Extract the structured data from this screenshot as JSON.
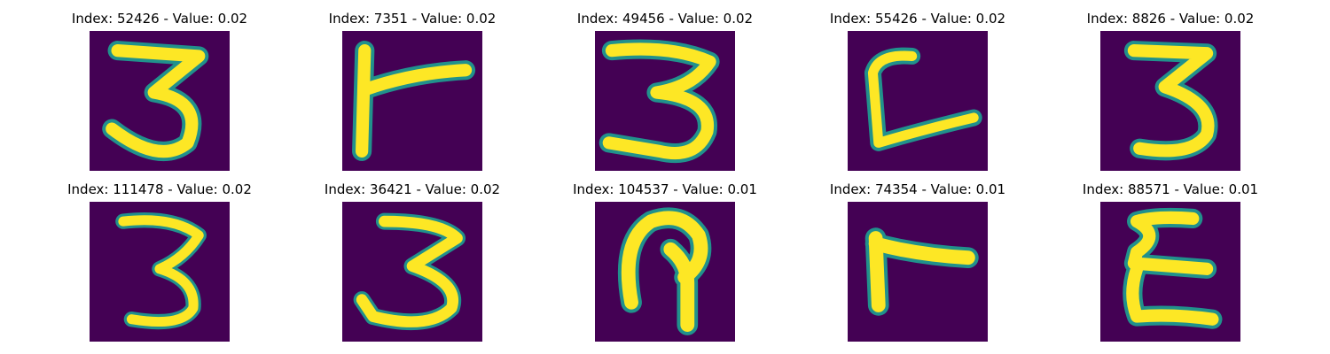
{
  "colors": {
    "background": "#440154",
    "mid": "#21918c",
    "stroke": "#fde725",
    "title_text": "#000000"
  },
  "panels": [
    {
      "title": "Index: 52426 - Value: 0.02",
      "glyph": "digit-three"
    },
    {
      "title": "Index: 7351 - Value: 0.02",
      "glyph": "sideways-t"
    },
    {
      "title": "Index: 49456 - Value: 0.02",
      "glyph": "digit-three"
    },
    {
      "title": "Index: 55426 - Value: 0.02",
      "glyph": "open-box"
    },
    {
      "title": "Index: 8826 - Value: 0.02",
      "glyph": "digit-three"
    },
    {
      "title": "Index: 111478 - Value: 0.02",
      "glyph": "digit-three"
    },
    {
      "title": "Index: 36421 - Value: 0.02",
      "glyph": "digit-three"
    },
    {
      "title": "Index: 104537 - Value: 0.01",
      "glyph": "hook"
    },
    {
      "title": "Index: 74354 - Value: 0.01",
      "glyph": "sideways-t"
    },
    {
      "title": "Index: 88571 - Value: 0.01",
      "glyph": "epsilon"
    }
  ]
}
